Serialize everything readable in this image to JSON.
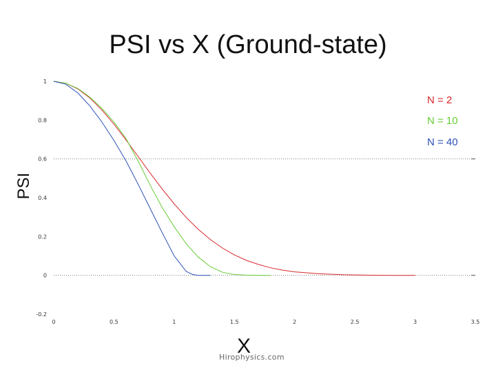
{
  "chart_data": {
    "type": "line",
    "title": "PSI vs X (Ground-state)",
    "xlabel": "X",
    "ylabel": "PSI",
    "xlim": [
      0,
      3.5
    ],
    "ylim": [
      -0.2,
      1
    ],
    "x_ticks": [
      "0",
      "0.5",
      "1",
      "1.5",
      "2",
      "2.5",
      "3",
      "3.5"
    ],
    "y_ticks": [
      "-0.2",
      "0",
      "0.2",
      "0.4",
      "0.6",
      "0.8",
      "1"
    ],
    "grid_lines_y": [
      0,
      0.6
    ],
    "legend_position": "top-right",
    "series": [
      {
        "name": "N = 2",
        "color": "#d9262b",
        "x": [
          0,
          0.1,
          0.2,
          0.3,
          0.4,
          0.5,
          0.6,
          0.7,
          0.8,
          0.9,
          1.0,
          1.1,
          1.2,
          1.3,
          1.4,
          1.5,
          1.6,
          1.7,
          1.8,
          1.9,
          2.0,
          2.2,
          2.4,
          2.6,
          2.8,
          3.0
        ],
        "y": [
          1,
          0.99,
          0.961,
          0.914,
          0.852,
          0.779,
          0.698,
          0.613,
          0.527,
          0.445,
          0.368,
          0.298,
          0.237,
          0.185,
          0.141,
          0.105,
          0.077,
          0.056,
          0.039,
          0.027,
          0.018,
          0.008,
          0.003,
          0.001,
          0.0,
          0.0
        ]
      },
      {
        "name": "N = 10",
        "color": "#66cc33",
        "x": [
          0,
          0.1,
          0.2,
          0.3,
          0.4,
          0.5,
          0.6,
          0.7,
          0.8,
          0.9,
          1.0,
          1.1,
          1.2,
          1.3,
          1.4,
          1.5,
          1.6,
          1.7,
          1.8
        ],
        "y": [
          1,
          0.99,
          0.963,
          0.918,
          0.86,
          0.79,
          0.705,
          0.59,
          0.465,
          0.35,
          0.25,
          0.163,
          0.094,
          0.045,
          0.016,
          0.004,
          0.001,
          0.0,
          0.0
        ]
      },
      {
        "name": "N = 40",
        "color": "#2b4fb8",
        "x": [
          0,
          0.1,
          0.2,
          0.3,
          0.4,
          0.5,
          0.6,
          0.7,
          0.8,
          0.9,
          1.0,
          1.1,
          1.15,
          1.2,
          1.25,
          1.3
        ],
        "y": [
          1,
          0.985,
          0.94,
          0.873,
          0.79,
          0.695,
          0.59,
          0.47,
          0.345,
          0.22,
          0.1,
          0.02,
          0.005,
          0.0,
          0.0,
          0.0
        ]
      }
    ]
  },
  "watermark": "Hirophysics.com"
}
